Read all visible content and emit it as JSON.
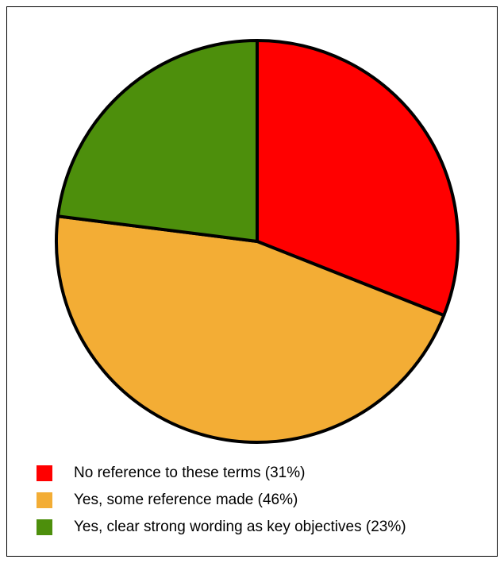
{
  "chart_data": {
    "type": "pie",
    "title": "",
    "slices": [
      {
        "label": "No reference to these terms (31%)",
        "value": 31,
        "color": "#ff0000"
      },
      {
        "label": "Yes, some reference made (46%)",
        "value": 46,
        "color": "#f3ad35"
      },
      {
        "label": "Yes, clear strong wording as key objectives (23%)",
        "value": 23,
        "color": "#4d8f0c"
      }
    ],
    "start_angle": "top (12 o'clock)",
    "direction": "clockwise",
    "slice_border_color": "#000000",
    "legend_placement": "bottom"
  }
}
